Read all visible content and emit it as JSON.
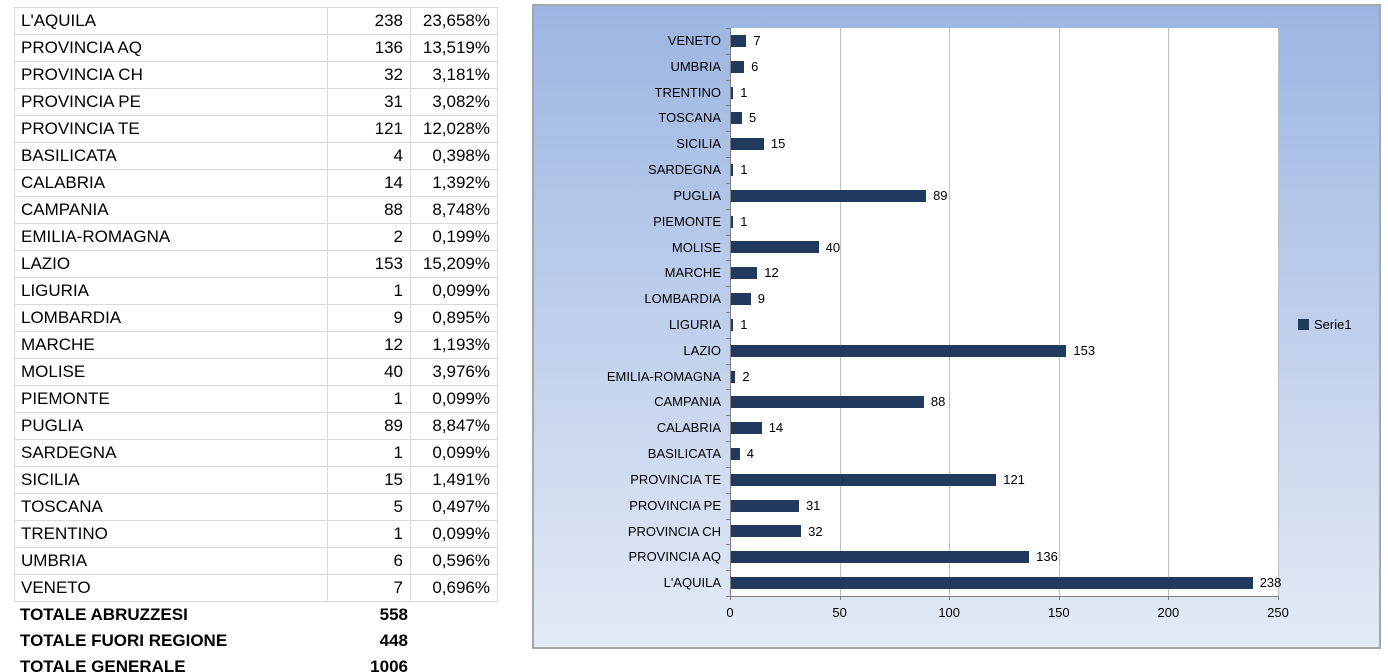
{
  "table": {
    "rows": [
      {
        "label": "L'AQUILA",
        "value": "238",
        "pct": "23,658%"
      },
      {
        "label": "PROVINCIA AQ",
        "value": "136",
        "pct": "13,519%"
      },
      {
        "label": "PROVINCIA CH",
        "value": "32",
        "pct": "3,181%"
      },
      {
        "label": "PROVINCIA PE",
        "value": "31",
        "pct": "3,082%"
      },
      {
        "label": "PROVINCIA TE",
        "value": "121",
        "pct": "12,028%"
      },
      {
        "label": "BASILICATA",
        "value": "4",
        "pct": "0,398%"
      },
      {
        "label": "CALABRIA",
        "value": "14",
        "pct": "1,392%"
      },
      {
        "label": "CAMPANIA",
        "value": "88",
        "pct": "8,748%"
      },
      {
        "label": "EMILIA-ROMAGNA",
        "value": "2",
        "pct": "0,199%"
      },
      {
        "label": "LAZIO",
        "value": "153",
        "pct": "15,209%"
      },
      {
        "label": "LIGURIA",
        "value": "1",
        "pct": "0,099%"
      },
      {
        "label": "LOMBARDIA",
        "value": "9",
        "pct": "0,895%"
      },
      {
        "label": "MARCHE",
        "value": "12",
        "pct": "1,193%"
      },
      {
        "label": "MOLISE",
        "value": "40",
        "pct": "3,976%"
      },
      {
        "label": "PIEMONTE",
        "value": "1",
        "pct": "0,099%"
      },
      {
        "label": "PUGLIA",
        "value": "89",
        "pct": "8,847%"
      },
      {
        "label": "SARDEGNA",
        "value": "1",
        "pct": "0,099%"
      },
      {
        "label": "SICILIA",
        "value": "15",
        "pct": "1,491%"
      },
      {
        "label": "TOSCANA",
        "value": "5",
        "pct": "0,497%"
      },
      {
        "label": "TRENTINO",
        "value": "1",
        "pct": "0,099%"
      },
      {
        "label": "UMBRIA",
        "value": "6",
        "pct": "0,596%"
      },
      {
        "label": "VENETO",
        "value": "7",
        "pct": "0,696%"
      }
    ],
    "totals": [
      {
        "label": "TOTALE ABRUZZESI",
        "value": "558"
      },
      {
        "label": "TOTALE FUORI REGIONE",
        "value": "448"
      },
      {
        "label": "TOTALE GENERALE",
        "value": "1006"
      }
    ]
  },
  "chart_data": {
    "type": "bar",
    "orientation": "horizontal",
    "order": "top-to-bottom",
    "categories": [
      "VENETO",
      "UMBRIA",
      "TRENTINO",
      "TOSCANA",
      "SICILIA",
      "SARDEGNA",
      "PUGLIA",
      "PIEMONTE",
      "MOLISE",
      "MARCHE",
      "LOMBARDIA",
      "LIGURIA",
      "LAZIO",
      "EMILIA-ROMAGNA",
      "CAMPANIA",
      "CALABRIA",
      "BASILICATA",
      "PROVINCIA TE",
      "PROVINCIA PE",
      "PROVINCIA CH",
      "PROVINCIA AQ",
      "L'AQUILA"
    ],
    "values": [
      7,
      6,
      1,
      5,
      15,
      1,
      89,
      1,
      40,
      12,
      9,
      1,
      153,
      2,
      88,
      14,
      4,
      121,
      31,
      32,
      136,
      238
    ],
    "data_labels": [
      "7",
      "6",
      "1",
      "5",
      "15",
      "1",
      "89",
      "1",
      "40",
      "12",
      "9",
      "1",
      "153",
      "2",
      "88",
      "14",
      "4",
      "121",
      "31",
      "32",
      "136",
      "238"
    ],
    "x_ticks": [
      "0",
      "50",
      "100",
      "150",
      "200",
      "250"
    ],
    "xlim": [
      0,
      250
    ],
    "grid": true,
    "legend_label": "Serie1",
    "legend_position": "right",
    "title": "",
    "xlabel": "",
    "ylabel": "",
    "colors": {
      "bar": "#1F3A5E",
      "plot_bg": "#FFFFFF",
      "chart_bg_top": "#9CB6E3",
      "chart_bg_bottom": "#E4EAF6",
      "gridline": "#BFBFBF",
      "axis": "#808080",
      "text": "#000000"
    }
  }
}
